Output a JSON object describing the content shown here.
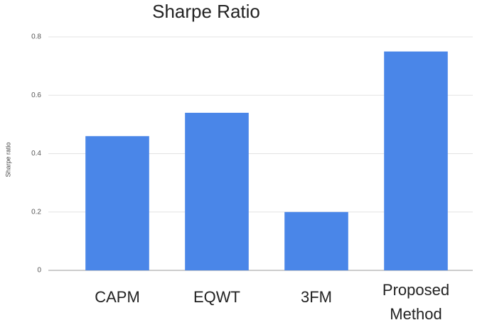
{
  "chart_data": {
    "type": "bar",
    "title": "Sharpe Ratio",
    "y_label": "Sharpe ratio",
    "categories": [
      "CAPM",
      "EQWT",
      "3FM",
      "Proposed Method"
    ],
    "values": [
      0.46,
      0.54,
      0.2,
      0.75
    ],
    "color": "#4a86e8",
    "ylim": [
      0,
      0.8
    ],
    "yticks": [
      0,
      0.2,
      0.4,
      0.6,
      0.8
    ],
    "grid": true
  }
}
